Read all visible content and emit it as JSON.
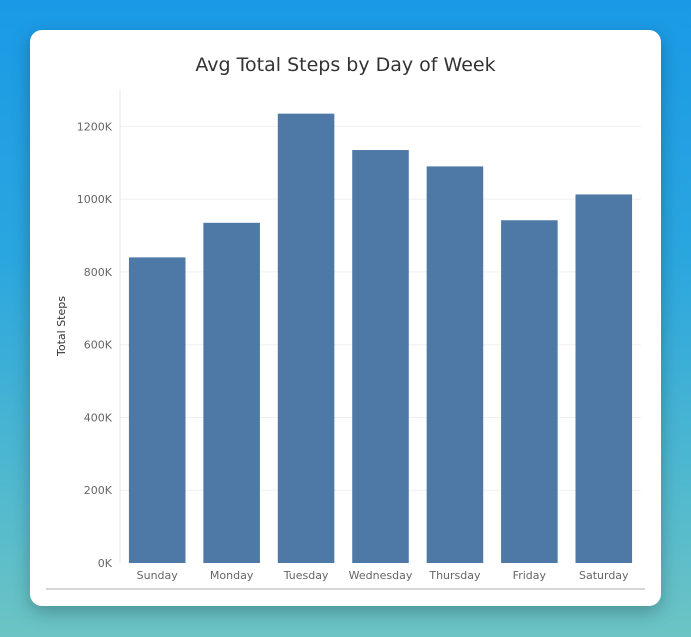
{
  "chart_data": {
    "type": "bar",
    "title": "Avg Total Steps by Day of Week",
    "xlabel": "",
    "ylabel": "Total Steps",
    "categories": [
      "Sunday",
      "Monday",
      "Tuesday",
      "Wednesday",
      "Thursday",
      "Friday",
      "Saturday"
    ],
    "values": [
      840000,
      935000,
      1235000,
      1135000,
      1090000,
      942000,
      1013000
    ],
    "ylim": [
      0,
      1300000
    ],
    "yticks": [
      0,
      200000,
      400000,
      600000,
      800000,
      1000000,
      1200000
    ],
    "ytick_labels": [
      "0K",
      "200K",
      "400K",
      "600K",
      "800K",
      "1000K",
      "1200K"
    ],
    "bar_color": "#4e79a7",
    "grid": true
  }
}
